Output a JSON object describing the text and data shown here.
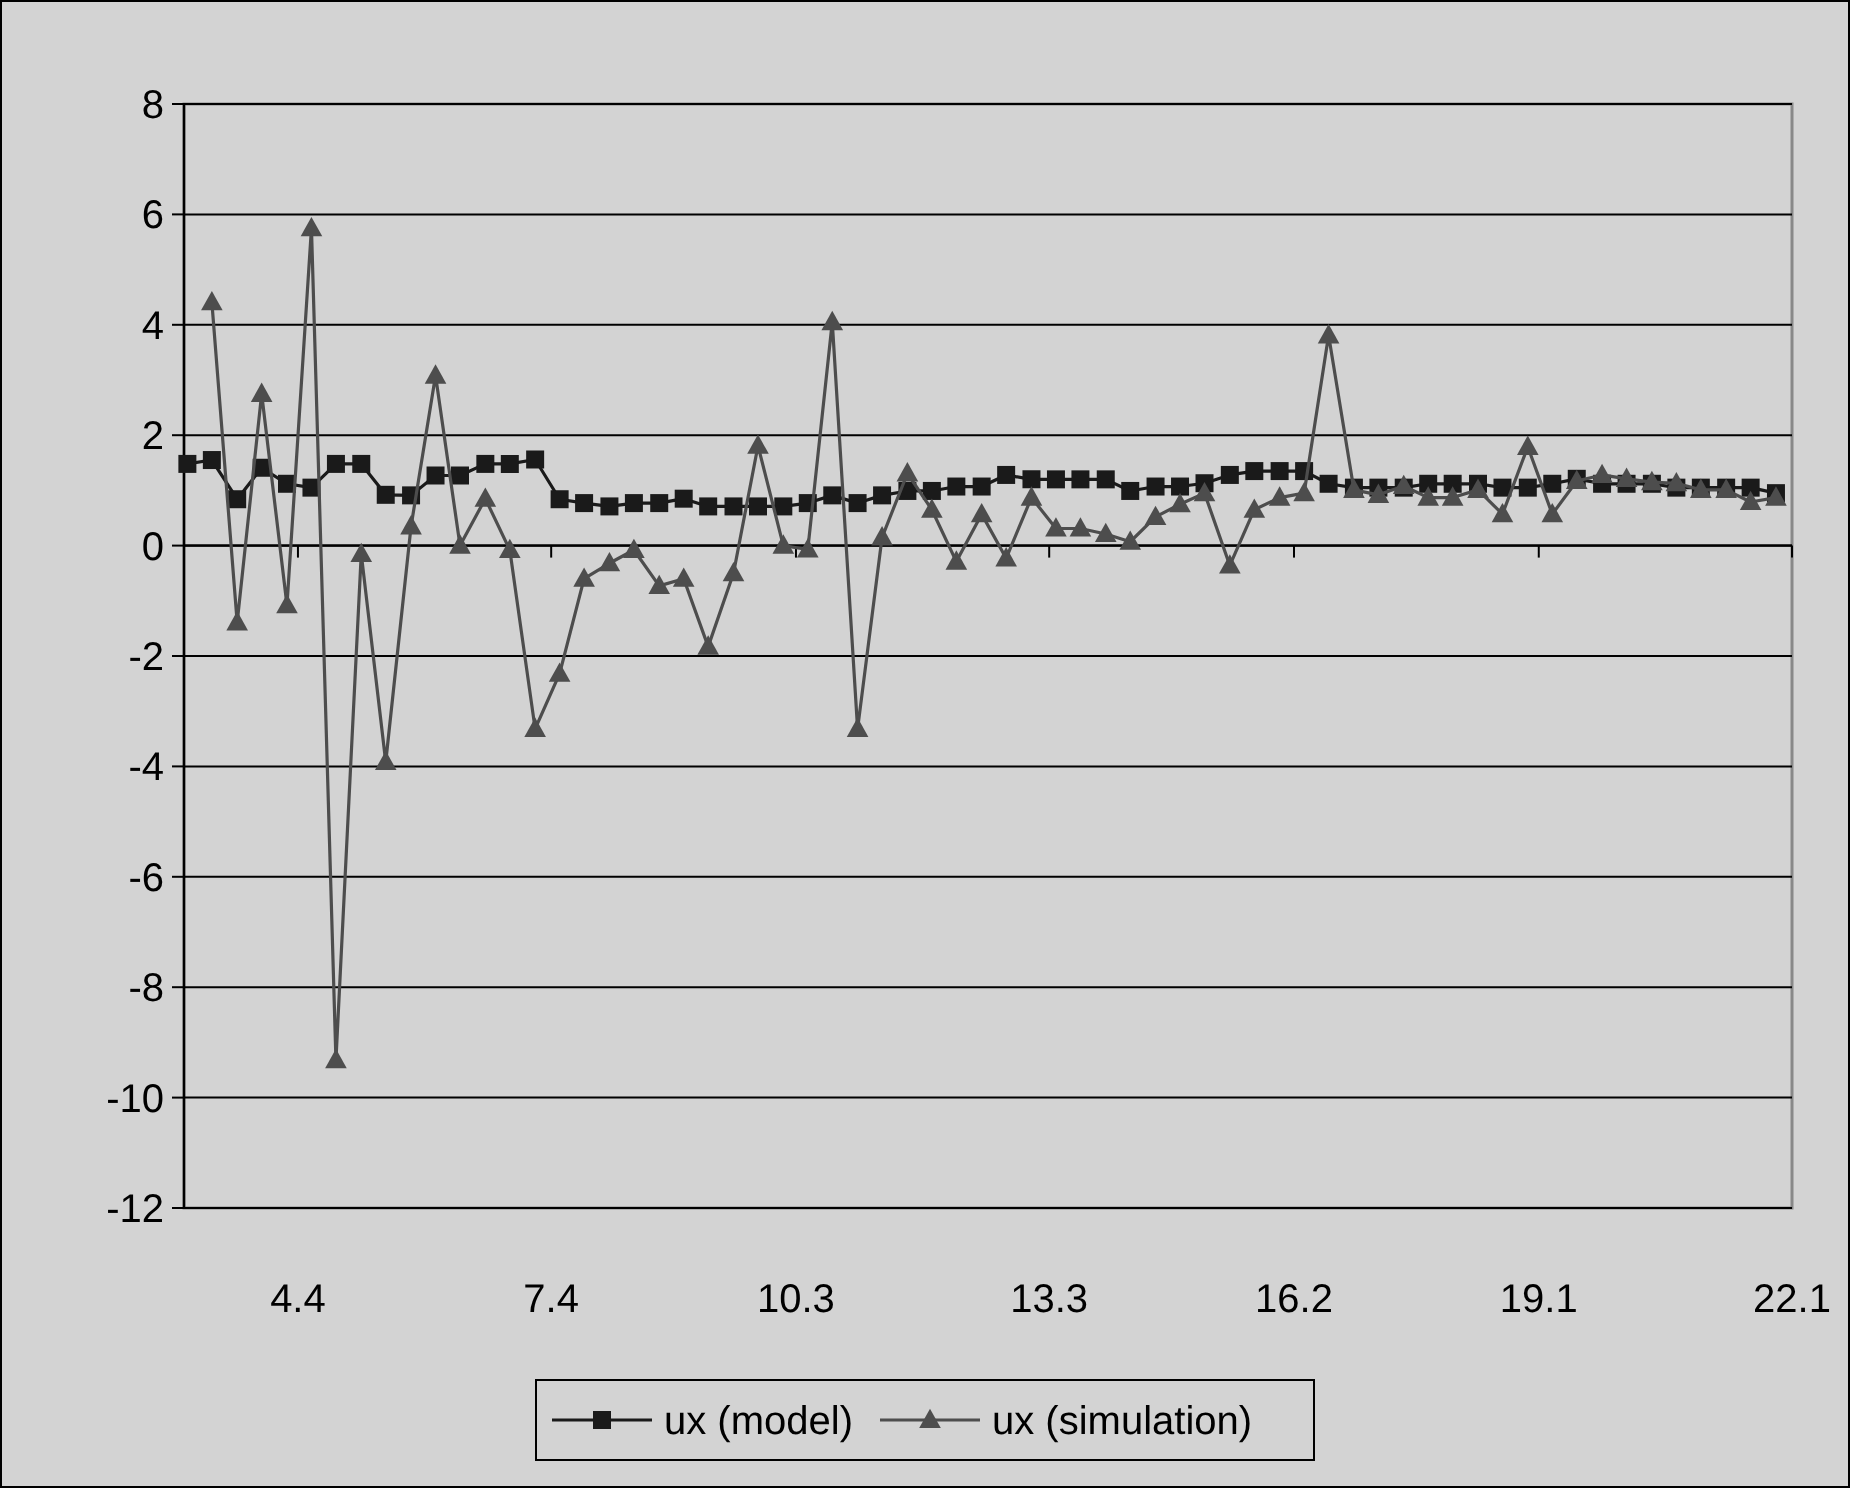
{
  "chart_data": {
    "type": "line",
    "x": [
      3.09,
      3.38,
      3.68,
      3.97,
      4.27,
      4.56,
      4.85,
      5.15,
      5.44,
      5.74,
      6.03,
      6.32,
      6.62,
      6.91,
      7.21,
      7.5,
      7.79,
      8.09,
      8.38,
      8.68,
      8.97,
      9.26,
      9.56,
      9.85,
      10.15,
      10.44,
      10.73,
      11.03,
      11.32,
      11.62,
      11.91,
      12.2,
      12.5,
      12.79,
      13.09,
      13.38,
      13.67,
      13.97,
      14.26,
      14.56,
      14.85,
      15.14,
      15.44,
      15.73,
      16.03,
      16.32,
      16.61,
      16.91,
      17.2,
      17.5,
      17.79,
      18.08,
      18.38,
      18.67,
      18.97,
      19.26,
      19.55,
      19.85,
      20.14,
      20.44,
      20.73,
      21.02,
      21.32,
      21.61,
      21.91
    ],
    "series": [
      {
        "name": "ux (model)",
        "color": "#1a1a1a",
        "marker": "square",
        "values": [
          1.48,
          1.55,
          0.84,
          1.41,
          1.12,
          1.05,
          1.48,
          1.48,
          0.92,
          0.91,
          1.27,
          1.27,
          1.48,
          1.48,
          1.56,
          0.84,
          0.77,
          0.71,
          0.77,
          0.77,
          0.85,
          0.71,
          0.71,
          0.71,
          0.71,
          0.77,
          0.91,
          0.77,
          0.91,
          0.99,
          0.99,
          1.07,
          1.07,
          1.28,
          1.2,
          1.2,
          1.2,
          1.2,
          0.99,
          1.07,
          1.07,
          1.13,
          1.28,
          1.35,
          1.35,
          1.35,
          1.12,
          1.05,
          1.05,
          1.05,
          1.12,
          1.12,
          1.12,
          1.05,
          1.05,
          1.12,
          1.21,
          1.12,
          1.12,
          1.12,
          1.05,
          1.05,
          1.05,
          1.05,
          0.95
        ]
      },
      {
        "name": "ux (simulation)",
        "color": "#4d4d4d",
        "marker": "triangle",
        "values": [
          null,
          4.41,
          -1.39,
          2.75,
          -1.08,
          5.75,
          -9.32,
          -0.15,
          -3.92,
          0.35,
          3.08,
          0,
          0.85,
          -0.08,
          -3.32,
          -2.32,
          -0.6,
          -0.32,
          -0.08,
          -0.73,
          -0.6,
          -1.83,
          -0.5,
          1.81,
          0,
          -0.07,
          4.05,
          -3.32,
          0.15,
          1.31,
          0.65,
          -0.29,
          0.57,
          -0.23,
          0.87,
          0.31,
          0.31,
          0.21,
          0.07,
          0.52,
          0.75,
          0.95,
          -0.36,
          0.65,
          0.87,
          0.95,
          3.81,
          1.01,
          0.92,
          1.08,
          0.87,
          0.87,
          1.01,
          0.57,
          1.79,
          0.57,
          1.17,
          1.28,
          1.21,
          1.15,
          1.13,
          1.01,
          1.01,
          0.79,
          0.87
        ]
      }
    ],
    "xlim": [
      3.05,
      22.1
    ],
    "xticks": [
      4.4,
      7.4,
      10.3,
      13.3,
      16.2,
      19.1,
      22.1
    ],
    "ylim": [
      -12,
      8
    ],
    "yticks": [
      -12,
      -10,
      -8,
      -6,
      -4,
      -2,
      0,
      2,
      4,
      6,
      8
    ],
    "grid": "y",
    "legend": "bottom",
    "line_style": "solid"
  }
}
